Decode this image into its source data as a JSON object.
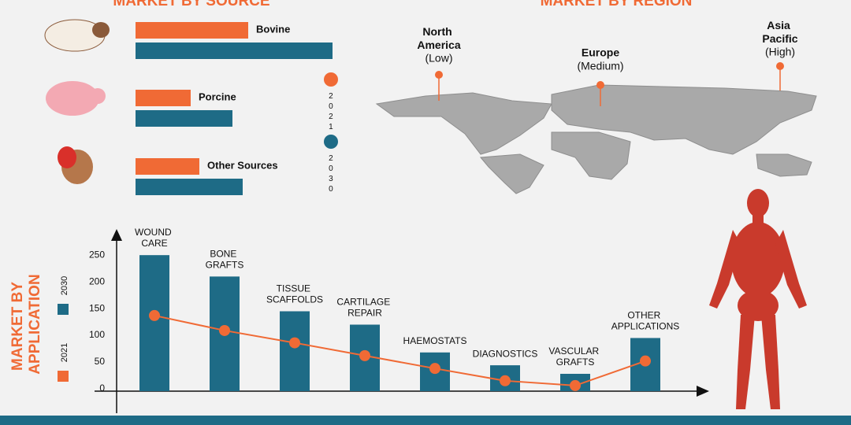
{
  "chart_data": [
    {
      "type": "hbar",
      "title": "MARKET BY SOURCE",
      "categories": [
        "Bovine",
        "Porcine",
        "Other Sources"
      ],
      "series": [
        {
          "name": "2021",
          "color": "#f06a35",
          "values": [
            143,
            70,
            81
          ]
        },
        {
          "name": "2030",
          "color": "#1e6b86",
          "values": [
            250,
            123,
            136
          ]
        }
      ]
    },
    {
      "type": "combo",
      "title": "MARKET BY APPLICATION",
      "categories": [
        "WOUND CARE",
        "BONE GRAFTS",
        "TISSUE SCAFFOLDS",
        "CARTILAGE REPAIR",
        "HAEMOSTATS",
        "DIAGNOSTICS",
        "VASCULAR GRAFTS",
        "OTHER APPLICATIONS"
      ],
      "series": [
        {
          "name": "2030",
          "type": "bar",
          "color": "#1e6b86",
          "values": [
            250,
            210,
            145,
            120,
            68,
            44,
            28,
            95
          ]
        },
        {
          "name": "2021",
          "type": "line",
          "color": "#f06a35",
          "values": [
            137,
            109,
            86,
            62,
            38,
            15,
            6,
            52
          ]
        }
      ],
      "ylim": [
        0,
        290
      ],
      "yticks": [
        0,
        50,
        100,
        150,
        200,
        250
      ]
    }
  ],
  "region": {
    "title": "MARKET BY REGION",
    "labels": [
      {
        "name": "North America",
        "level": "(Low)"
      },
      {
        "name": "Europe",
        "level": "(Medium)"
      },
      {
        "name": "Asia Pacific",
        "level": "(High)"
      }
    ]
  }
}
